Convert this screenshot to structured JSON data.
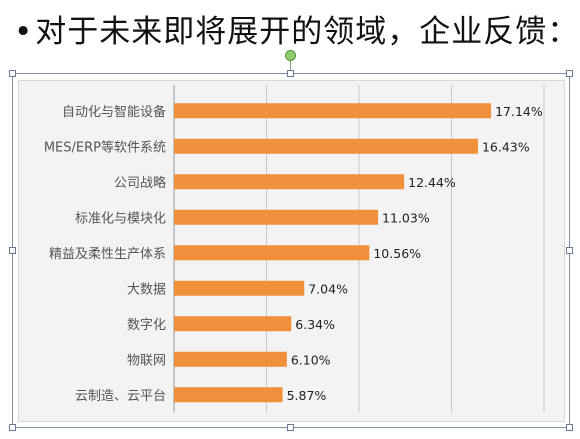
{
  "slide": {
    "bullet": "•",
    "title": "对于未来即将展开的领域，企业反馈："
  },
  "chart_data": {
    "type": "bar",
    "orientation": "horizontal",
    "categories": [
      "自动化与智能设备",
      "MES/ERP等软件系统",
      "公司战略",
      "标准化与模块化",
      "精益及柔性生产体系",
      "大数据",
      "数字化",
      "物联网",
      "云制造、云平台"
    ],
    "values": [
      17.14,
      16.43,
      12.44,
      11.03,
      10.56,
      7.04,
      6.34,
      6.1,
      5.87
    ],
    "data_labels": [
      "17.14%",
      "16.43%",
      "12.44%",
      "11.03%",
      "10.56%",
      "7.04%",
      "6.34%",
      "6.10%",
      "5.87%"
    ],
    "xlim": [
      0,
      20
    ],
    "grid": true,
    "bar_color": "#f0903a",
    "grid_color": "#c8c8c8",
    "label_color": "#555555"
  }
}
